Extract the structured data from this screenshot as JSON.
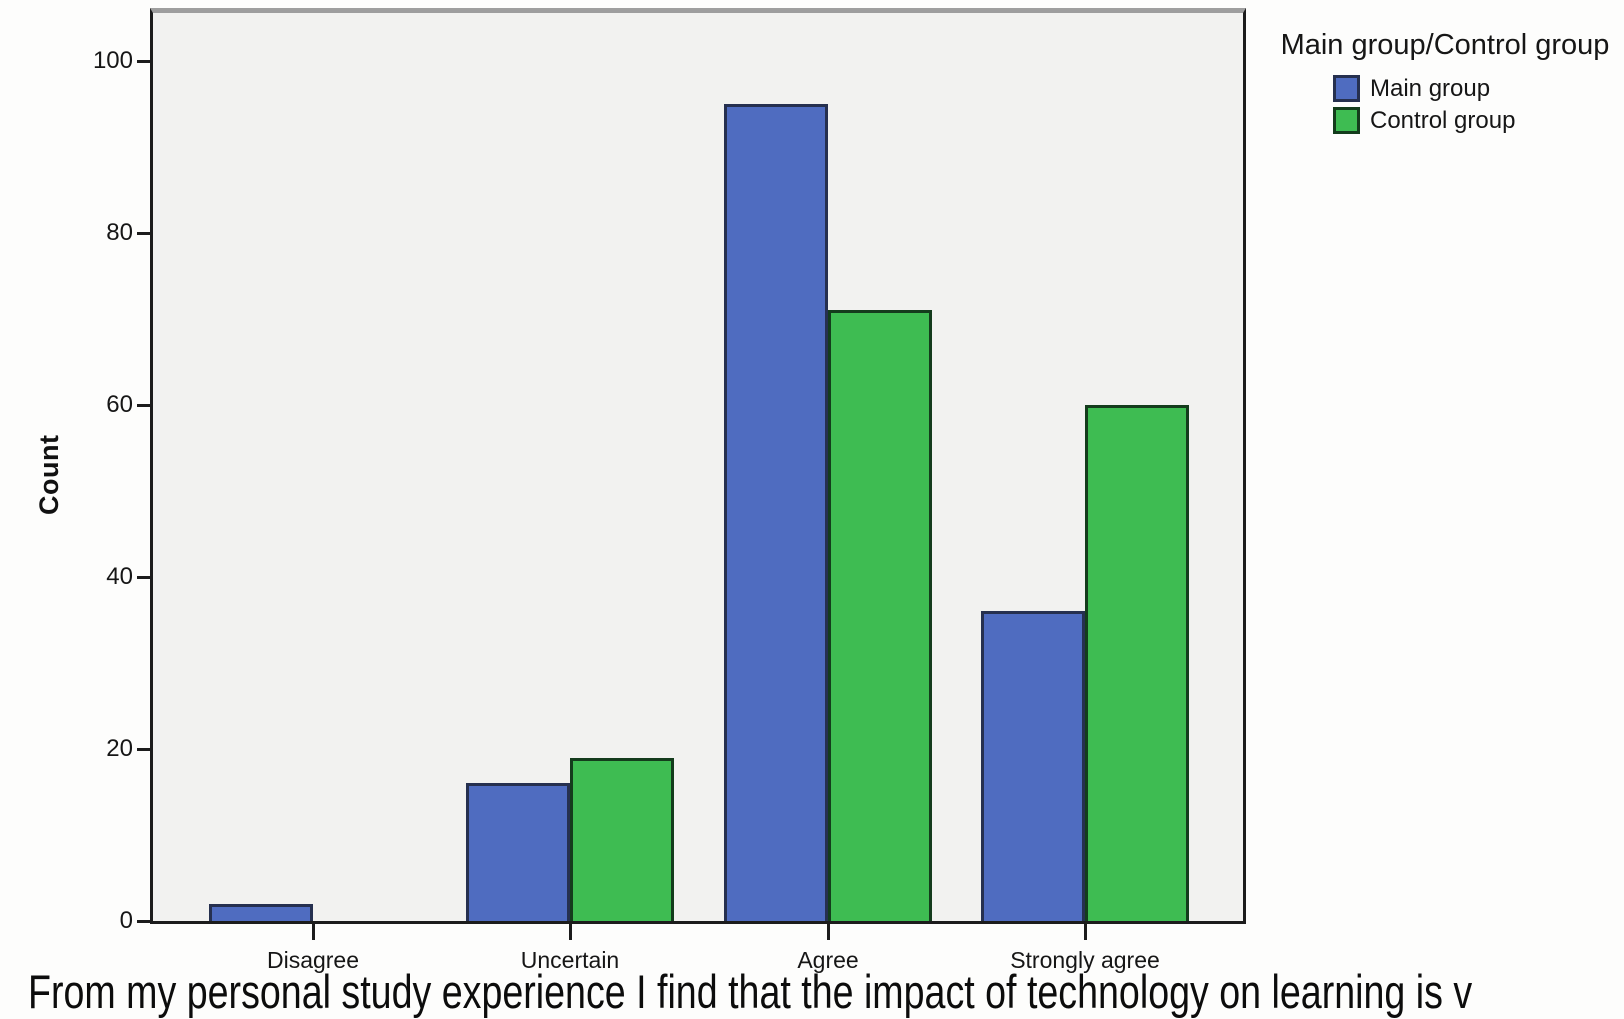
{
  "chart_data": {
    "type": "bar",
    "title": "",
    "categories": [
      "Disagree",
      "Uncertain",
      "Agree",
      "Strongly agree"
    ],
    "series": [
      {
        "name": "Main group",
        "color": "#4f6cc0",
        "border_color": "#26304f",
        "values": [
          2,
          16,
          95,
          36
        ]
      },
      {
        "name": "Control group",
        "color": "#3ebc52",
        "border_color": "#143c1c",
        "values": [
          0,
          19,
          71,
          60
        ]
      }
    ],
    "xlabel": "",
    "ylabel": "Count",
    "yticks": [
      0,
      20,
      40,
      60,
      80,
      100
    ],
    "ylim": [
      0,
      105
    ],
    "grid": false,
    "plot_background": "#f2f2f0",
    "frame_top_color": "#9e9e9e",
    "axis_color": "#1c1c1c",
    "legend": {
      "title": "Main group/Control group",
      "position": "top-right-outside",
      "entries": [
        "Main group",
        "Control group"
      ]
    }
  },
  "caption": {
    "text": "From my personal study experience I find that the impact of technology on learning is v"
  }
}
